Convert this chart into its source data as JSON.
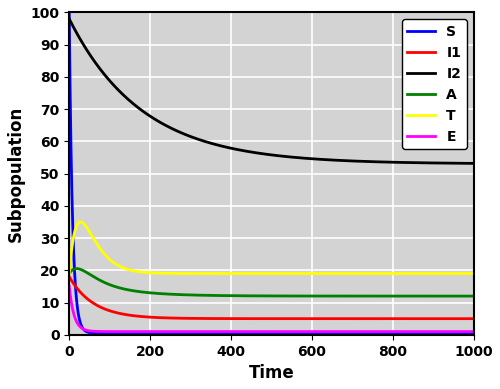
{
  "xlabel": "Time",
  "ylabel": "Subpopulation",
  "xlim": [
    0,
    1000
  ],
  "ylim": [
    0,
    100
  ],
  "yticks": [
    0,
    10,
    20,
    30,
    40,
    50,
    60,
    70,
    80,
    90,
    100
  ],
  "xticks": [
    0,
    200,
    400,
    600,
    800,
    1000
  ],
  "legend_labels": [
    "S",
    "I1",
    "I2",
    "A",
    "T",
    "E"
  ],
  "line_colors": [
    "blue",
    "red",
    "black",
    "green",
    "yellow",
    "magenta"
  ],
  "line_width": 2.0,
  "S0": 100.0,
  "I1_0": 18.0,
  "I2_0": 98.0,
  "A0": 19.0,
  "T0": 19.0,
  "E0": 15.0,
  "background_color": "#d3d3d3",
  "grid_color": "white",
  "S_eq": 0.5,
  "I1_eq": 5.0,
  "I2_eq": 53.0,
  "A_eq": 12.0,
  "T_eq": 19.0,
  "E_eq": 1.0
}
